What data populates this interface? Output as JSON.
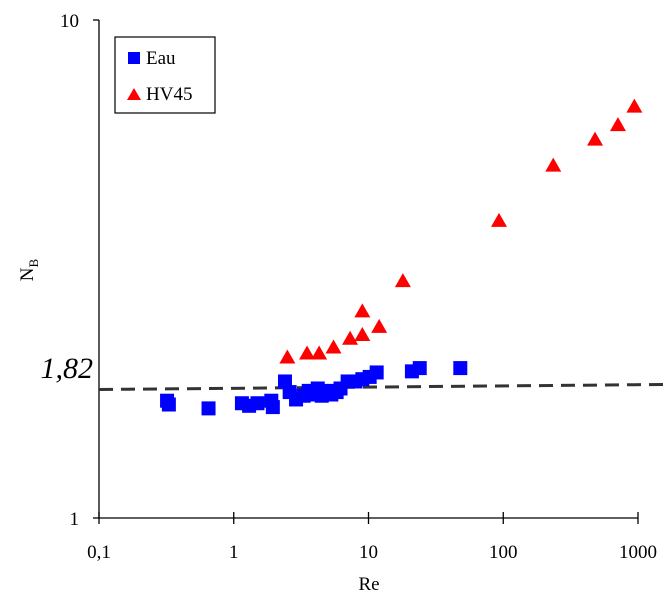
{
  "chart_data": {
    "type": "scatter",
    "title": "",
    "xlabel": "Re",
    "ylabel": "N",
    "ylabel_subscript": "B",
    "x_scale": "log",
    "y_scale": "log",
    "xlim": [
      0.1,
      1000
    ],
    "ylim": [
      1,
      10
    ],
    "x_ticks": [
      0.1,
      1,
      10,
      100,
      1000
    ],
    "x_tick_labels": [
      "0,1",
      "1",
      "10",
      "100",
      "1000"
    ],
    "y_ticks": [
      1,
      10
    ],
    "y_tick_labels": [
      "1",
      "10"
    ],
    "grid": false,
    "legend_position": "top-left",
    "reference_line": {
      "y": 1.82,
      "label": "1,82",
      "style": "dashed"
    },
    "series": [
      {
        "name": "Eau",
        "marker": "square",
        "color": "#0000ff",
        "points": [
          [
            0.32,
            1.72
          ],
          [
            0.33,
            1.69
          ],
          [
            0.65,
            1.66
          ],
          [
            1.15,
            1.7
          ],
          [
            1.3,
            1.68
          ],
          [
            1.5,
            1.7
          ],
          [
            1.9,
            1.72
          ],
          [
            1.95,
            1.67
          ],
          [
            2.4,
            1.88
          ],
          [
            2.6,
            1.79
          ],
          [
            2.9,
            1.73
          ],
          [
            3.3,
            1.76
          ],
          [
            3.6,
            1.8
          ],
          [
            4.0,
            1.77
          ],
          [
            4.2,
            1.82
          ],
          [
            4.5,
            1.76
          ],
          [
            5.0,
            1.8
          ],
          [
            5.3,
            1.77
          ],
          [
            5.8,
            1.79
          ],
          [
            6.2,
            1.82
          ],
          [
            7.0,
            1.88
          ],
          [
            8.0,
            1.88
          ],
          [
            9.0,
            1.9
          ],
          [
            10.2,
            1.92
          ],
          [
            11.5,
            1.96
          ],
          [
            21,
            1.97
          ],
          [
            24,
            2.0
          ],
          [
            48,
            2.0
          ]
        ]
      },
      {
        "name": "HV45",
        "marker": "triangle",
        "color": "#ff0000",
        "points": [
          [
            2.5,
            2.1
          ],
          [
            3.5,
            2.14
          ],
          [
            4.3,
            2.14
          ],
          [
            5.5,
            2.2
          ],
          [
            7.3,
            2.29
          ],
          [
            9.0,
            2.33
          ],
          [
            9.0,
            2.6
          ],
          [
            12,
            2.42
          ],
          [
            18,
            2.99
          ],
          [
            93,
            3.95
          ],
          [
            235,
            5.1
          ],
          [
            480,
            5.75
          ],
          [
            710,
            6.15
          ],
          [
            940,
            6.7
          ]
        ]
      }
    ]
  }
}
